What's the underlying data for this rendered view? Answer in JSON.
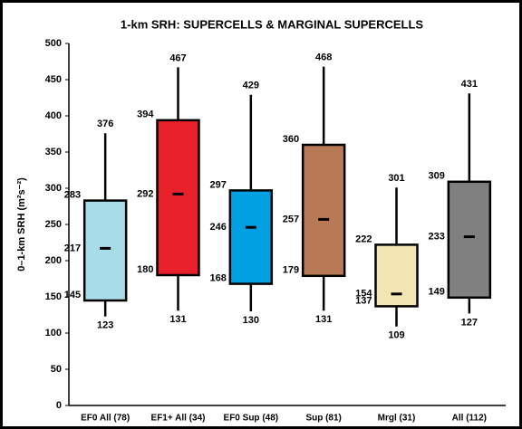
{
  "chart_data": {
    "type": "box",
    "title": "1-km SRH:  SUPERCELLS & MARGINAL SUPERCELLS",
    "y_label": "0–1-km SRH (m²s⁻²)",
    "categories": [
      "EF0 All (78)",
      "EF1+ All (34)",
      "EF0 Sup (48)",
      "Sup (81)",
      "Mrgl (31)",
      "All (112)"
    ],
    "colors": [
      "#a8dce9",
      "#e8202a",
      "#00a0e2",
      "#b87a56",
      "#f2e6b4",
      "#808080"
    ],
    "whislo": [
      123,
      131,
      130,
      131,
      109,
      127
    ],
    "q1": [
      145,
      180,
      168,
      179,
      137,
      149
    ],
    "median": [
      217,
      292,
      246,
      257,
      154,
      233
    ],
    "q3": [
      283,
      394,
      297,
      360,
      222,
      309
    ],
    "whishi": [
      376,
      467,
      429,
      468,
      301,
      431
    ],
    "ylim": [
      0,
      500
    ],
    "yticks": [
      0,
      50,
      100,
      150,
      200,
      250,
      300,
      350,
      400,
      450,
      500
    ]
  }
}
